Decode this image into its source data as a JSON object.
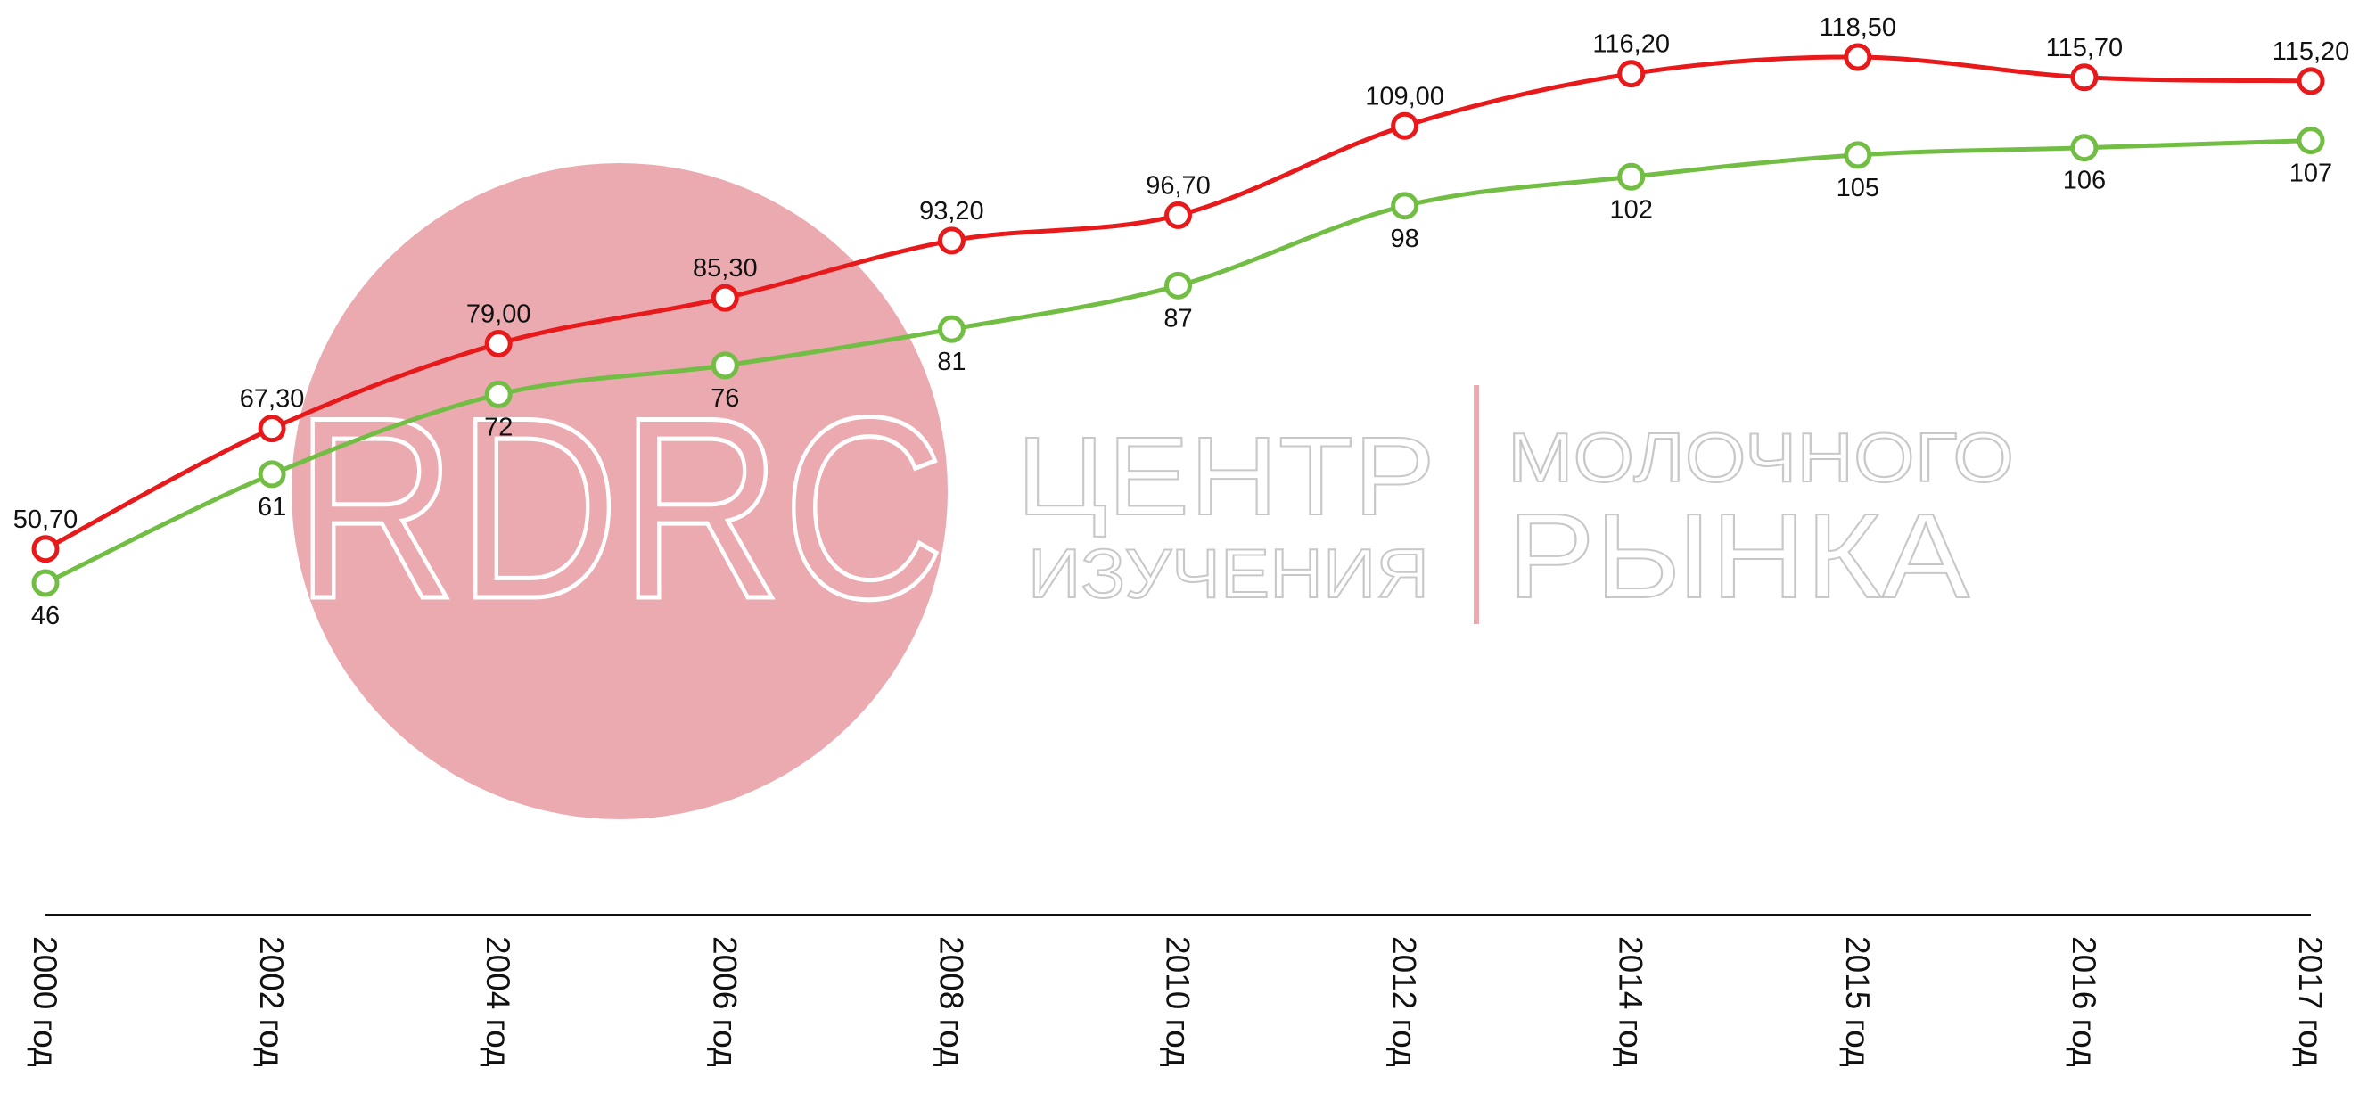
{
  "chart_data": {
    "type": "line",
    "categories": [
      "2000 год",
      "2002 год",
      "2004 год",
      "2006 год",
      "2008 год",
      "2010 год",
      "2012 год",
      "2014 год",
      "2015 год",
      "2016 год",
      "2017 год"
    ],
    "series": [
      {
        "color": "#e8191a",
        "values": [
          50.7,
          67.3,
          79.0,
          85.3,
          93.2,
          96.7,
          109.0,
          116.2,
          118.5,
          115.7,
          115.2
        ],
        "value_labels": [
          "50,70",
          "67,30",
          "79,00",
          "85,30",
          "93,20",
          "96,70",
          "109,00",
          "116,20",
          "118,50",
          "115,70",
          "115,20"
        ]
      },
      {
        "color": "#72bd44",
        "values": [
          46,
          61,
          72,
          76,
          81,
          87,
          98,
          102,
          105,
          106,
          107
        ]
      }
    ]
  },
  "watermark": {
    "logo": "RDRC",
    "line1": "ЦЕНТР",
    "line2": "ИЗУЧЕНИЯ",
    "line3": "МОЛОЧНОГО",
    "line4": "РЫНКА"
  }
}
